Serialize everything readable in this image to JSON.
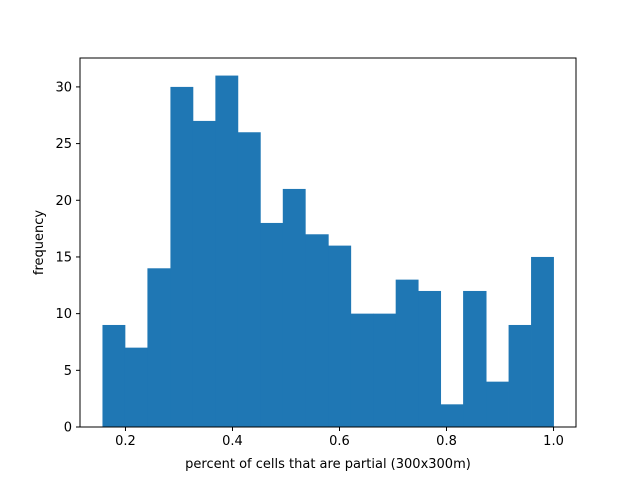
{
  "chart_data": {
    "type": "bar",
    "subtype": "histogram",
    "title": "",
    "xlabel": "percent of cells that are partial (300x300m)",
    "ylabel": "frequency",
    "xlim": [
      0.115,
      1.042
    ],
    "ylim": [
      0,
      32.55
    ],
    "xticks": [
      0.2,
      0.4,
      0.6,
      0.8,
      1.0
    ],
    "xtick_labels": [
      "0.2",
      "0.4",
      "0.6",
      "0.8",
      "1.0"
    ],
    "yticks": [
      0,
      5,
      10,
      15,
      20,
      25,
      30
    ],
    "ytick_labels": [
      "0",
      "5",
      "10",
      "15",
      "20",
      "25",
      "30"
    ],
    "bin_edges": [
      0.157,
      0.199,
      0.241,
      0.284,
      0.326,
      0.368,
      0.41,
      0.452,
      0.494,
      0.536,
      0.579,
      0.621,
      0.663,
      0.705,
      0.747,
      0.789,
      0.831,
      0.874,
      0.916,
      0.958,
      1.0
    ],
    "values": [
      9,
      7,
      14,
      30,
      27,
      31,
      26,
      18,
      21,
      17,
      16,
      10,
      10,
      13,
      12,
      2,
      12,
      4,
      9,
      15
    ],
    "bar_color": "#1f77b4",
    "grid": false,
    "legend": "none"
  }
}
